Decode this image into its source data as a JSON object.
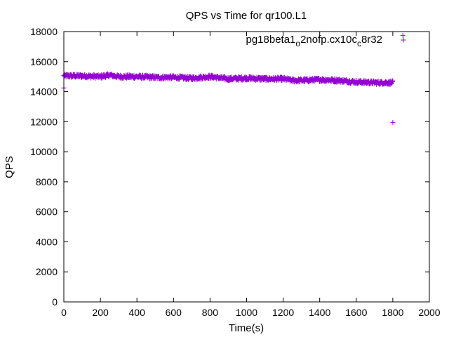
{
  "chart_data": {
    "type": "scatter",
    "title": "QPS vs Time for qr100.L1",
    "xlabel": "Time(s)",
    "ylabel": "QPS",
    "xlim": [
      0,
      2000
    ],
    "ylim": [
      0,
      18000
    ],
    "x_ticks": [
      "0",
      "200",
      "400",
      "600",
      "800",
      "1000",
      "1200",
      "1400",
      "1600",
      "1800",
      "2000"
    ],
    "y_ticks": [
      "0",
      "2000",
      "4000",
      "6000",
      "8000",
      "10000",
      "12000",
      "14000",
      "16000",
      "18000"
    ],
    "grid": false,
    "legend_position": "top-right",
    "series": [
      {
        "name": "pg18beta1_o2nofp.cx10c_c8r32",
        "legend_parts": [
          {
            "text": "pg18beta1",
            "shift": "base"
          },
          {
            "text": "o",
            "shift": "sub"
          },
          {
            "text": "2nofp.cx10c",
            "shift": "base"
          },
          {
            "text": "c",
            "shift": "sub"
          },
          {
            "text": "8r32",
            "shift": "base"
          }
        ],
        "color": "#9400d3",
        "marker": "plus",
        "trend": [
          [
            0,
            15050
          ],
          [
            100,
            15050
          ],
          [
            200,
            15000
          ],
          [
            250,
            15100
          ],
          [
            300,
            15000
          ],
          [
            400,
            15000
          ],
          [
            500,
            14950
          ],
          [
            600,
            14950
          ],
          [
            700,
            14900
          ],
          [
            800,
            15000
          ],
          [
            900,
            14850
          ],
          [
            1000,
            14900
          ],
          [
            1100,
            14850
          ],
          [
            1200,
            14850
          ],
          [
            1250,
            14750
          ],
          [
            1300,
            14750
          ],
          [
            1400,
            14800
          ],
          [
            1500,
            14750
          ],
          [
            1550,
            14700
          ],
          [
            1600,
            14650
          ],
          [
            1700,
            14600
          ],
          [
            1800,
            14600
          ]
        ],
        "spread": 120,
        "step": 2,
        "outliers": [
          [
            0,
            14250
          ],
          [
            1800,
            11950
          ],
          [
            1855,
            17750
          ]
        ]
      }
    ]
  }
}
